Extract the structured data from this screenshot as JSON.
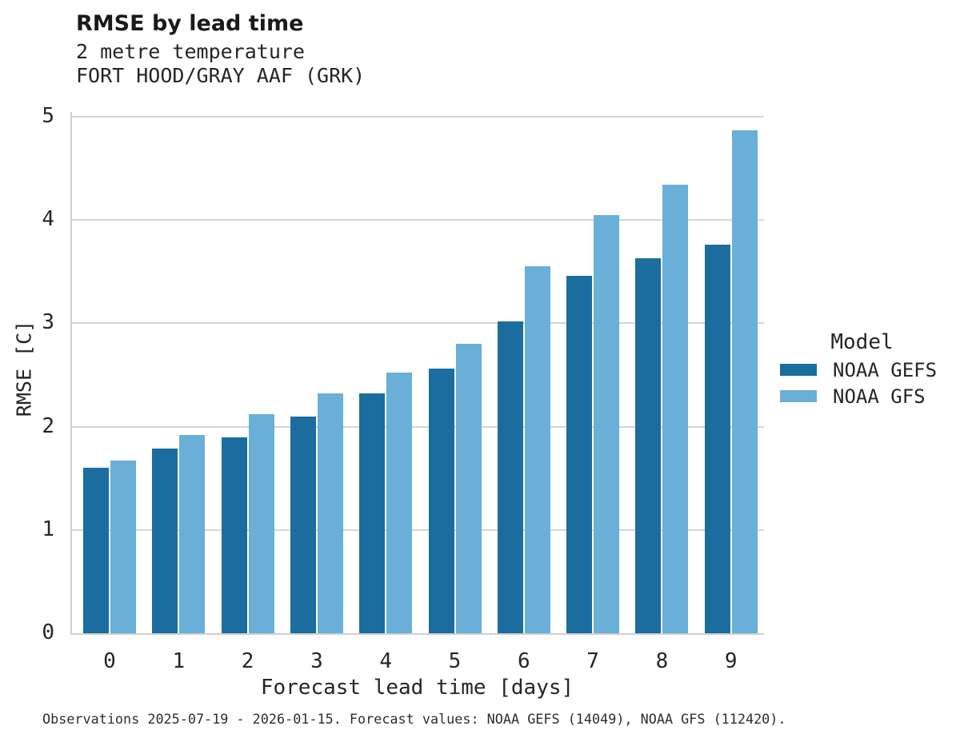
{
  "chart_data": {
    "type": "bar",
    "title": "RMSE by lead time",
    "subtitle": "2 metre temperature",
    "station": "FORT HOOD/GRAY AAF (GRK)",
    "xlabel": "Forecast lead time [days]",
    "ylabel": "RMSE [C]",
    "categories": [
      "0",
      "1",
      "2",
      "3",
      "4",
      "5",
      "6",
      "7",
      "8",
      "9"
    ],
    "series": [
      {
        "name": "NOAA GEFS",
        "color": "#1a6d9e",
        "values": [
          1.6,
          1.79,
          1.9,
          2.1,
          2.32,
          2.56,
          3.02,
          3.46,
          3.63,
          3.76
        ]
      },
      {
        "name": "NOAA GFS",
        "color": "#69afd8",
        "values": [
          1.67,
          1.92,
          2.12,
          2.32,
          2.52,
          2.8,
          3.55,
          4.05,
          4.34,
          4.87
        ]
      }
    ],
    "ylim": [
      0,
      5
    ],
    "yticks": [
      0,
      1,
      2,
      3,
      4,
      5
    ],
    "grid": true,
    "legend_title": "Model",
    "legend_position": "right"
  },
  "footer": {
    "text": "Observations 2025-07-19 - 2026-01-15. Forecast values: NOAA GEFS (14049), NOAA GFS (112420)."
  },
  "colors": {
    "grid": "#d6d6d6",
    "spine": "#d0d0d0",
    "text": "#262626"
  }
}
